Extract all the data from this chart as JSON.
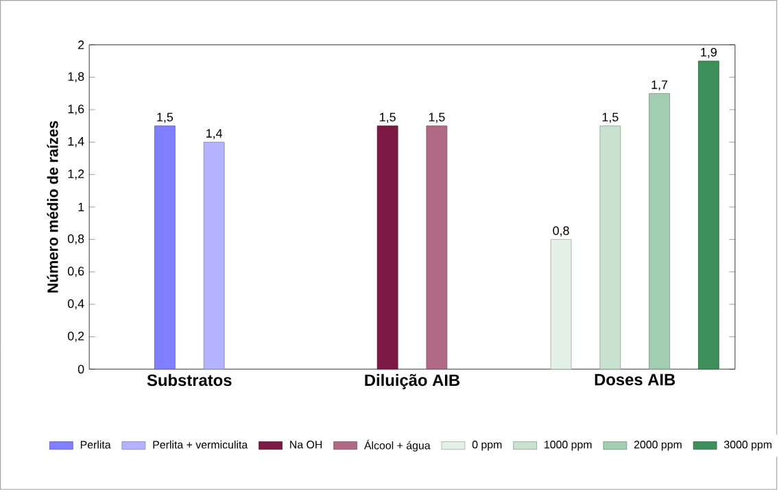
{
  "chart_data": {
    "type": "bar",
    "ylabel": "Número médio de raízes",
    "categories": [
      "Substratos",
      "Diluição AIB",
      "Doses AIB"
    ],
    "series": [
      {
        "name": "Perlita",
        "color": "#8080ff",
        "values": [
          1.5,
          null,
          null
        ],
        "value_labels": [
          "1,5",
          null,
          null
        ]
      },
      {
        "name": "Perlita + vermiculita",
        "color": "#b3b3ff",
        "values": [
          1.4,
          null,
          null
        ],
        "value_labels": [
          "1,4",
          null,
          null
        ]
      },
      {
        "name": "Na OH",
        "color": "#7a1a45",
        "values": [
          null,
          1.5,
          null
        ],
        "value_labels": [
          null,
          "1,5",
          null
        ]
      },
      {
        "name": "Álcool + água",
        "color": "#b06a85",
        "values": [
          null,
          1.5,
          null
        ],
        "value_labels": [
          null,
          "1,5",
          null
        ]
      },
      {
        "name": "0 ppm",
        "color": "#e3f0e6",
        "values": [
          null,
          null,
          0.8
        ],
        "value_labels": [
          null,
          null,
          "0,8"
        ]
      },
      {
        "name": "1000 ppm",
        "color": "#c8e2cf",
        "values": [
          null,
          null,
          1.5
        ],
        "value_labels": [
          null,
          null,
          "1,5"
        ]
      },
      {
        "name": "2000 ppm",
        "color": "#a2cdb0",
        "values": [
          null,
          null,
          1.7
        ],
        "value_labels": [
          null,
          null,
          "1,7"
        ]
      },
      {
        "name": "3000 ppm",
        "color": "#3f8f5c",
        "values": [
          null,
          null,
          1.9
        ],
        "value_labels": [
          null,
          null,
          "1,9"
        ]
      }
    ],
    "ylim": [
      0,
      2
    ],
    "yticks": [
      0,
      {
        "value": 0.2,
        "label": "0,2"
      },
      {
        "value": 0.4,
        "label": "0,4"
      },
      {
        "value": 0.6,
        "label": "0,6"
      },
      {
        "value": 0.8,
        "label": "0,8"
      },
      1,
      {
        "value": 1.2,
        "label": "1,2"
      },
      {
        "value": 1.4,
        "label": "1,4"
      },
      {
        "value": 1.6,
        "label": "1,6"
      },
      {
        "value": 1.8,
        "label": "1,8"
      },
      2
    ],
    "grid": false,
    "legend": "bottom"
  }
}
